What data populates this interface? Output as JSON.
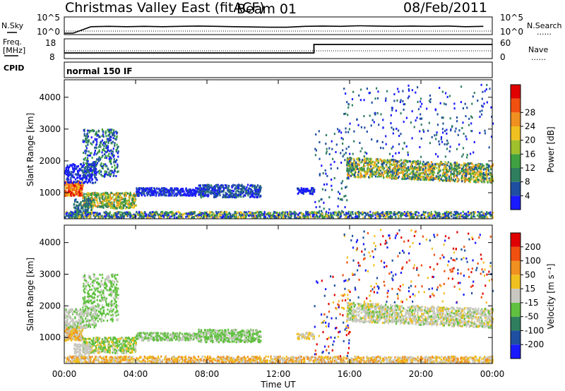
{
  "header": {
    "station": "Christmas Valley East (fitACF)",
    "beam": "Beam 01",
    "date": "08/Feb/2011"
  },
  "strip_labels": {
    "nsky": "N.Sky",
    "freq_line1": "Freq.",
    "freq_line2": "[MHz]",
    "cpid": "CPID",
    "nsearch": "N.Search",
    "nave": "Nave",
    "dots": "......",
    "cpid_text": "normal 150 IF"
  },
  "chart_data": [
    {
      "type": "line",
      "name": "noise",
      "left_axis": {
        "label": "N.Sky",
        "ticks": [
          "10^5",
          "10^0"
        ]
      },
      "right_axis": {
        "label": "N.Search",
        "ticks": [
          "10^5",
          "10^0"
        ]
      },
      "x_range_hours": [
        0,
        24
      ],
      "series": [
        {
          "values_log10": [
            0.0,
            2.2,
            2.3,
            2.2,
            2.3,
            2.2,
            2.3,
            2.4,
            2.3,
            2.2,
            2.1,
            2.0,
            2.0,
            2.3,
            2.4,
            2.3,
            2.5,
            2.4,
            2.3,
            2.4,
            2.3,
            2.4,
            2.2,
            2.3
          ]
        }
      ]
    },
    {
      "type": "line",
      "name": "frequency",
      "left_axis": {
        "label": "Freq. [MHz]",
        "ticks": [
          "18",
          "8"
        ]
      },
      "right_axis": {
        "label": "Nave",
        "ticks": [
          "60",
          "0"
        ]
      },
      "x_range_hours": [
        0,
        24
      ],
      "series": [
        {
          "x": [
            0,
            14,
            14,
            24
          ],
          "y": [
            10.5,
            10.5,
            15.5,
            15.5
          ]
        }
      ]
    },
    {
      "type": "heatmap",
      "title": "Power",
      "ylabel": "Slant Range [km]",
      "xlabel": "Time UT",
      "x_ticks": [
        "00:00",
        "04:00",
        "08:00",
        "12:00",
        "16:00",
        "20:00",
        "00:00"
      ],
      "y_ticks": [
        "1000",
        "2000",
        "3000",
        "4000"
      ],
      "ylim": [
        180,
        4550
      ],
      "colorbar": {
        "label": "Power [dB]",
        "ticks": [
          "4",
          "8",
          "12",
          "16",
          "20",
          "24",
          "28"
        ]
      },
      "colors": [
        "#1a1aff",
        "#1f4fa0",
        "#2f7f5f",
        "#3fa13f",
        "#a0c02c",
        "#f0c020",
        "#f09020",
        "#f05010",
        "#e00000"
      ]
    },
    {
      "type": "heatmap",
      "title": "Velocity",
      "ylabel": "Slant Range [km]",
      "xlabel": "Time UT",
      "x_ticks": [
        "00:00",
        "04:00",
        "08:00",
        "12:00",
        "16:00",
        "20:00",
        "00:00"
      ],
      "y_ticks": [
        "1000",
        "2000",
        "3000",
        "4000"
      ],
      "ylim": [
        180,
        4550
      ],
      "colorbar": {
        "label": "Velocity [m s⁻¹]",
        "ticks": [
          "200",
          "100",
          "50",
          "15",
          "-15",
          "-50",
          "-100",
          "-200"
        ]
      },
      "colors": [
        "#1a1aff",
        "#1f4fa0",
        "#2f7f5f",
        "#60c040",
        "#c8c8c0",
        "#f0c020",
        "#f09020",
        "#f05010",
        "#e00000"
      ]
    }
  ],
  "xlabel": "Time UT"
}
